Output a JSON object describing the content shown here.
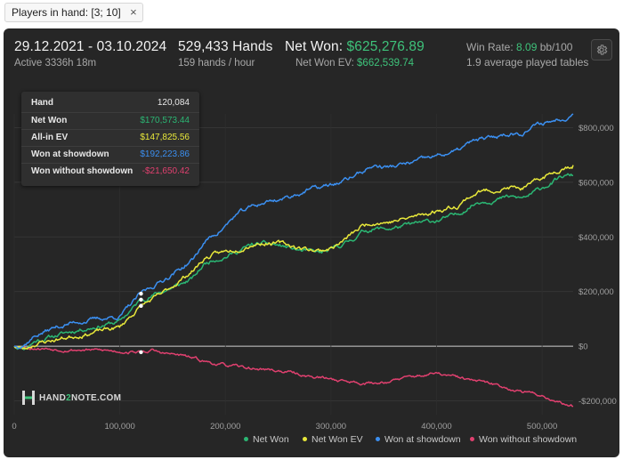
{
  "filter": {
    "chip_label": "Players in hand: [3; 10]",
    "close_glyph": "×"
  },
  "header": {
    "date_range": "29.12.2021 - 03.10.2024",
    "active_time": "Active 3336h 18m",
    "hands": "529,433 Hands",
    "hands_rate": "159 hands / hour",
    "net_won_label": "Net Won: ",
    "net_won_value": "$625,276.89",
    "net_won_ev_label": "Net Won  EV: ",
    "net_won_ev_value": "$662,539.74",
    "win_rate_label": "Win Rate: ",
    "win_rate_value": "8.09",
    "win_rate_unit": " bb/100",
    "tables": "1.9 average played tables"
  },
  "tooltip": {
    "hand_label": "Hand",
    "hand_value": "120,084",
    "rows": [
      {
        "label": "Net Won",
        "value": "$170,573.44",
        "color": "#2bb673"
      },
      {
        "label": "All-in EV",
        "value": "$147,825.56",
        "color": "#e8e83a"
      },
      {
        "label": "Won at showdown",
        "value": "$192,223.86",
        "color": "#3b8ff0"
      },
      {
        "label": "Won without showdown",
        "value": "-$21,650.42",
        "color": "#e0406f"
      }
    ]
  },
  "logo": {
    "part1": "HAND",
    "part2": "2",
    "part3": "NOTE.COM"
  },
  "legend": [
    {
      "label": "Net Won",
      "color": "#2bb673"
    },
    {
      "label": "Net Won  EV",
      "color": "#e8e83a"
    },
    {
      "label": "Won at showdown",
      "color": "#3b8ff0"
    },
    {
      "label": "Won without showdown",
      "color": "#e0406f"
    }
  ],
  "colors": {
    "background": "#262626",
    "accent_green": "#3ec27a",
    "grid": "#3a3a3a",
    "zero_line": "#cfcfcf"
  },
  "chart_data": {
    "type": "line",
    "xlim": [
      0,
      529433
    ],
    "ylim": [
      -250000,
      850000
    ],
    "x_ticks": [
      0,
      100000,
      200000,
      300000,
      400000,
      500000
    ],
    "x_tick_labels": [
      "0",
      "100,000",
      "200,000",
      "300,000",
      "400,000",
      "500,000"
    ],
    "y_ticks": [
      800000,
      600000,
      400000,
      200000,
      0,
      -200000
    ],
    "y_tick_labels": [
      "$800,000",
      "$600,000",
      "$400,000",
      "$200,000",
      "$0",
      "-$200,000"
    ],
    "grid": true,
    "legend_position": "bottom-right",
    "hover_x": 120084,
    "series": [
      {
        "name": "Net Won",
        "color": "#2bb673",
        "noise": 5000,
        "seed": 11,
        "points": [
          [
            0,
            0
          ],
          [
            10000,
            -5000
          ],
          [
            20000,
            20000
          ],
          [
            40000,
            40000
          ],
          [
            60000,
            60000
          ],
          [
            80000,
            75000
          ],
          [
            100000,
            90000
          ],
          [
            110000,
            130000
          ],
          [
            120084,
            170573
          ],
          [
            140000,
            200000
          ],
          [
            160000,
            230000
          ],
          [
            170000,
            250000
          ],
          [
            180000,
            300000
          ],
          [
            190000,
            320000
          ],
          [
            200000,
            330000
          ],
          [
            210000,
            345000
          ],
          [
            225000,
            370000
          ],
          [
            240000,
            375000
          ],
          [
            255000,
            365000
          ],
          [
            270000,
            350000
          ],
          [
            280000,
            345000
          ],
          [
            290000,
            340000
          ],
          [
            300000,
            350000
          ],
          [
            310000,
            370000
          ],
          [
            320000,
            390000
          ],
          [
            330000,
            420000
          ],
          [
            340000,
            430000
          ],
          [
            355000,
            430000
          ],
          [
            370000,
            440000
          ],
          [
            385000,
            450000
          ],
          [
            400000,
            460000
          ],
          [
            410000,
            470000
          ],
          [
            420000,
            480000
          ],
          [
            430000,
            510000
          ],
          [
            440000,
            530000
          ],
          [
            450000,
            535000
          ],
          [
            460000,
            540000
          ],
          [
            470000,
            545000
          ],
          [
            480000,
            540000
          ],
          [
            490000,
            555000
          ],
          [
            500000,
            580000
          ],
          [
            510000,
            600000
          ],
          [
            520000,
            620000
          ],
          [
            529433,
            625277
          ]
        ]
      },
      {
        "name": "Net Won  EV",
        "color": "#e8e83a",
        "noise": 5000,
        "seed": 23,
        "points": [
          [
            0,
            0
          ],
          [
            10000,
            -10000
          ],
          [
            20000,
            10000
          ],
          [
            40000,
            25000
          ],
          [
            60000,
            40000
          ],
          [
            80000,
            55000
          ],
          [
            100000,
            70000
          ],
          [
            110000,
            110000
          ],
          [
            120084,
            147826
          ],
          [
            140000,
            190000
          ],
          [
            160000,
            250000
          ],
          [
            170000,
            280000
          ],
          [
            180000,
            320000
          ],
          [
            190000,
            335000
          ],
          [
            200000,
            345000
          ],
          [
            210000,
            355000
          ],
          [
            225000,
            375000
          ],
          [
            240000,
            380000
          ],
          [
            255000,
            375000
          ],
          [
            270000,
            360000
          ],
          [
            280000,
            355000
          ],
          [
            290000,
            350000
          ],
          [
            300000,
            360000
          ],
          [
            310000,
            380000
          ],
          [
            320000,
            410000
          ],
          [
            330000,
            440000
          ],
          [
            340000,
            455000
          ],
          [
            355000,
            455000
          ],
          [
            370000,
            465000
          ],
          [
            385000,
            480000
          ],
          [
            400000,
            495000
          ],
          [
            410000,
            505000
          ],
          [
            420000,
            515000
          ],
          [
            430000,
            545000
          ],
          [
            440000,
            565000
          ],
          [
            450000,
            570000
          ],
          [
            460000,
            575000
          ],
          [
            470000,
            580000
          ],
          [
            480000,
            575000
          ],
          [
            490000,
            590000
          ],
          [
            500000,
            615000
          ],
          [
            510000,
            635000
          ],
          [
            520000,
            655000
          ],
          [
            529433,
            662540
          ]
        ]
      },
      {
        "name": "Won at showdown",
        "color": "#3b8ff0",
        "noise": 5000,
        "seed": 37,
        "points": [
          [
            0,
            0
          ],
          [
            10000,
            10000
          ],
          [
            20000,
            40000
          ],
          [
            40000,
            70000
          ],
          [
            60000,
            90000
          ],
          [
            80000,
            100000
          ],
          [
            100000,
            110000
          ],
          [
            110000,
            150000
          ],
          [
            120084,
            192224
          ],
          [
            140000,
            240000
          ],
          [
            160000,
            290000
          ],
          [
            170000,
            320000
          ],
          [
            180000,
            380000
          ],
          [
            190000,
            410000
          ],
          [
            200000,
            440000
          ],
          [
            210000,
            480000
          ],
          [
            225000,
            510000
          ],
          [
            240000,
            530000
          ],
          [
            255000,
            540000
          ],
          [
            270000,
            560000
          ],
          [
            280000,
            575000
          ],
          [
            290000,
            580000
          ],
          [
            300000,
            590000
          ],
          [
            310000,
            600000
          ],
          [
            320000,
            620000
          ],
          [
            330000,
            640000
          ],
          [
            340000,
            660000
          ],
          [
            355000,
            655000
          ],
          [
            370000,
            665000
          ],
          [
            385000,
            680000
          ],
          [
            400000,
            695000
          ],
          [
            410000,
            705000
          ],
          [
            420000,
            715000
          ],
          [
            430000,
            740000
          ],
          [
            440000,
            755000
          ],
          [
            450000,
            760000
          ],
          [
            460000,
            770000
          ],
          [
            470000,
            780000
          ],
          [
            480000,
            780000
          ],
          [
            490000,
            800000
          ],
          [
            500000,
            815000
          ],
          [
            510000,
            825000
          ],
          [
            520000,
            835000
          ],
          [
            529433,
            850000
          ]
        ]
      },
      {
        "name": "Won without showdown",
        "color": "#e0406f",
        "noise": 3500,
        "seed": 53,
        "points": [
          [
            0,
            0
          ],
          [
            20000,
            -5000
          ],
          [
            40000,
            -10000
          ],
          [
            60000,
            -12000
          ],
          [
            80000,
            -15000
          ],
          [
            100000,
            -18000
          ],
          [
            120084,
            -21650
          ],
          [
            130000,
            -15000
          ],
          [
            140000,
            -25000
          ],
          [
            160000,
            -35000
          ],
          [
            180000,
            -55000
          ],
          [
            200000,
            -70000
          ],
          [
            220000,
            -80000
          ],
          [
            240000,
            -85000
          ],
          [
            260000,
            -95000
          ],
          [
            280000,
            -110000
          ],
          [
            300000,
            -120000
          ],
          [
            320000,
            -130000
          ],
          [
            340000,
            -135000
          ],
          [
            360000,
            -125000
          ],
          [
            380000,
            -110000
          ],
          [
            400000,
            -100000
          ],
          [
            420000,
            -115000
          ],
          [
            440000,
            -130000
          ],
          [
            460000,
            -145000
          ],
          [
            480000,
            -165000
          ],
          [
            500000,
            -180000
          ],
          [
            510000,
            -195000
          ],
          [
            520000,
            -210000
          ],
          [
            529433,
            -220000
          ]
        ]
      }
    ]
  }
}
